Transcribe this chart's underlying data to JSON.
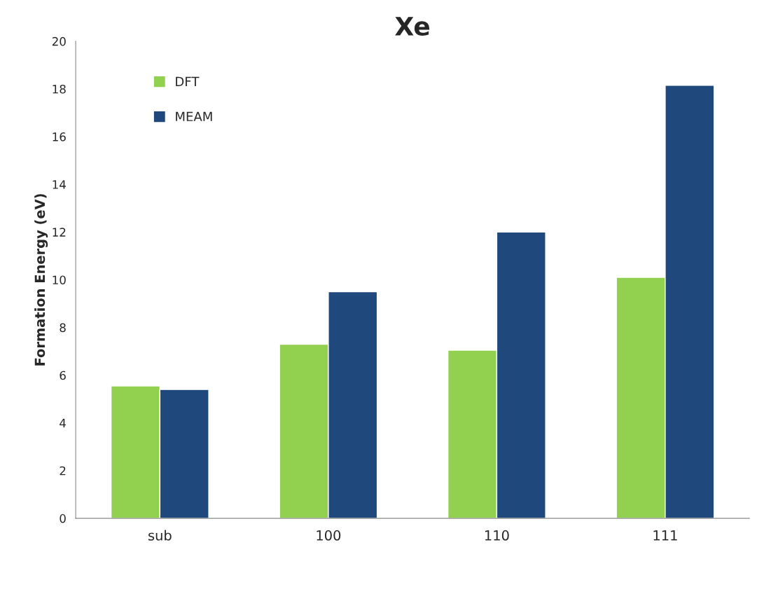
{
  "chart_data": {
    "type": "bar",
    "title": "Xe",
    "ylabel": "Formation Energy (eV)",
    "categories": [
      "sub",
      "100",
      "110",
      "111"
    ],
    "series": [
      {
        "name": "DFT",
        "color": "#92d050",
        "values": [
          5.55,
          7.3,
          7.05,
          10.1
        ]
      },
      {
        "name": "MEAM",
        "color": "#1f497d",
        "values": [
          5.4,
          9.5,
          12.0,
          18.15
        ]
      }
    ],
    "ylim": [
      0,
      20
    ],
    "yticks": [
      0,
      2,
      4,
      6,
      8,
      10,
      12,
      14,
      16,
      18,
      20
    ],
    "grid": false,
    "legend": "top left"
  }
}
